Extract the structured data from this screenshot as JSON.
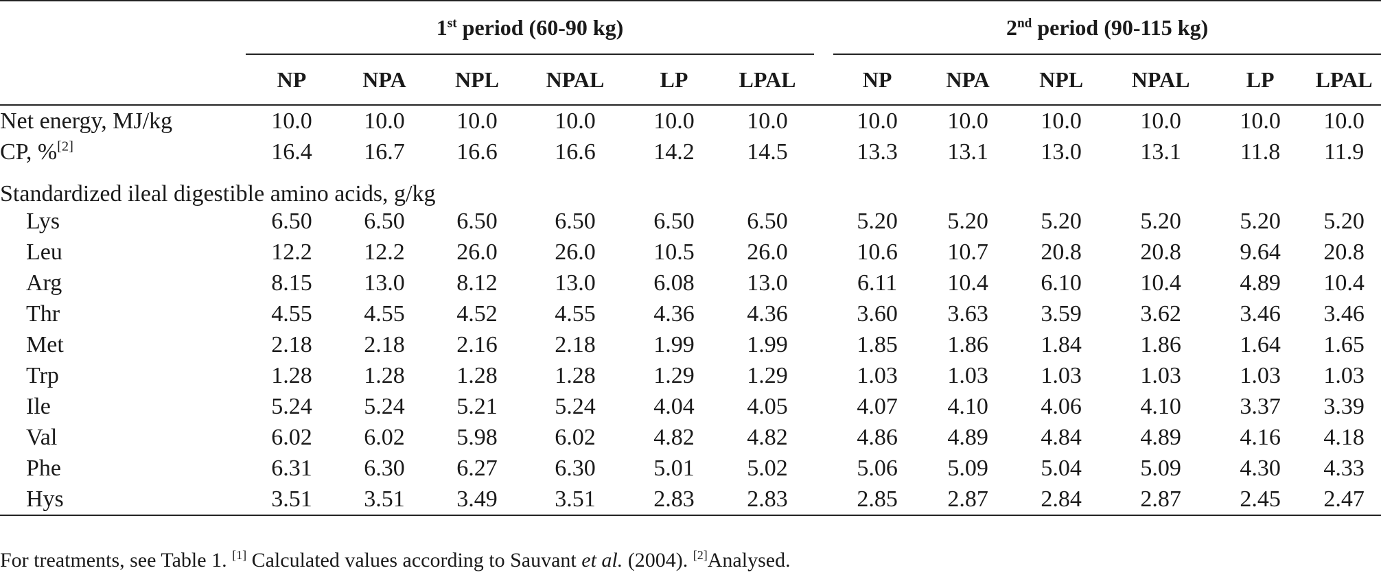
{
  "periods": [
    {
      "label": "1",
      "sup": "st",
      "rest": " period (60-90 kg)"
    },
    {
      "label": "2",
      "sup": "nd",
      "rest": " period (90-115 kg)"
    }
  ],
  "diets": [
    "NP",
    "NPA",
    "NPL",
    "NPAL",
    "LP",
    "LPAL",
    "NP",
    "NPA",
    "NPL",
    "NPAL",
    "LP",
    "LPAL"
  ],
  "rows_top": [
    {
      "label": "Net energy, MJ/kg",
      "sup": "",
      "values": [
        "10.0",
        "10.0",
        "10.0",
        "10.0",
        "10.0",
        "10.0",
        "10.0",
        "10.0",
        "10.0",
        "10.0",
        "10.0",
        "10.0"
      ]
    },
    {
      "label": "CP, %",
      "sup": "[2]",
      "values": [
        "16.4",
        "16.7",
        "16.6",
        "16.6",
        "14.2",
        "14.5",
        "13.3",
        "13.1",
        "13.0",
        "13.1",
        "11.8",
        "11.9"
      ]
    }
  ],
  "section_label": "Standardized ileal digestible amino acids, g/kg",
  "amino_rows": [
    {
      "label": "Lys",
      "values": [
        "6.50",
        "6.50",
        "6.50",
        "6.50",
        "6.50",
        "6.50",
        "5.20",
        "5.20",
        "5.20",
        "5.20",
        "5.20",
        "5.20"
      ]
    },
    {
      "label": "Leu",
      "values": [
        "12.2",
        "12.2",
        "26.0",
        "26.0",
        "10.5",
        "26.0",
        "10.6",
        "10.7",
        "20.8",
        "20.8",
        "9.64",
        "20.8"
      ]
    },
    {
      "label": "Arg",
      "values": [
        "8.15",
        "13.0",
        "8.12",
        "13.0",
        "6.08",
        "13.0",
        "6.11",
        "10.4",
        "6.10",
        "10.4",
        "4.89",
        "10.4"
      ]
    },
    {
      "label": "Thr",
      "values": [
        "4.55",
        "4.55",
        "4.52",
        "4.55",
        "4.36",
        "4.36",
        "3.60",
        "3.63",
        "3.59",
        "3.62",
        "3.46",
        "3.46"
      ]
    },
    {
      "label": "Met",
      "values": [
        "2.18",
        "2.18",
        "2.16",
        "2.18",
        "1.99",
        "1.99",
        "1.85",
        "1.86",
        "1.84",
        "1.86",
        "1.64",
        "1.65"
      ]
    },
    {
      "label": "Trp",
      "values": [
        "1.28",
        "1.28",
        "1.28",
        "1.28",
        "1.29",
        "1.29",
        "1.03",
        "1.03",
        "1.03",
        "1.03",
        "1.03",
        "1.03"
      ]
    },
    {
      "label": "Ile",
      "values": [
        "5.24",
        "5.24",
        "5.21",
        "5.24",
        "4.04",
        "4.05",
        "4.07",
        "4.10",
        "4.06",
        "4.10",
        "3.37",
        "3.39"
      ]
    },
    {
      "label": "Val",
      "values": [
        "6.02",
        "6.02",
        "5.98",
        "6.02",
        "4.82",
        "4.82",
        "4.86",
        "4.89",
        "4.84",
        "4.89",
        "4.16",
        "4.18"
      ]
    },
    {
      "label": "Phe",
      "values": [
        "6.31",
        "6.30",
        "6.27",
        "6.30",
        "5.01",
        "5.02",
        "5.06",
        "5.09",
        "5.04",
        "5.09",
        "4.30",
        "4.33"
      ]
    },
    {
      "label": "Hys",
      "values": [
        "3.51",
        "3.51",
        "3.49",
        "3.51",
        "2.83",
        "2.83",
        "2.85",
        "2.87",
        "2.84",
        "2.87",
        "2.45",
        "2.47"
      ]
    }
  ],
  "footnote": {
    "part1": "For treatments, see Table 1. ",
    "sup1": "[1]",
    "part2": " Calculated values according to Sauvant ",
    "italic": "et al.",
    "part3": " (2004). ",
    "sup2": "[2]",
    "part4": "Analysed."
  }
}
